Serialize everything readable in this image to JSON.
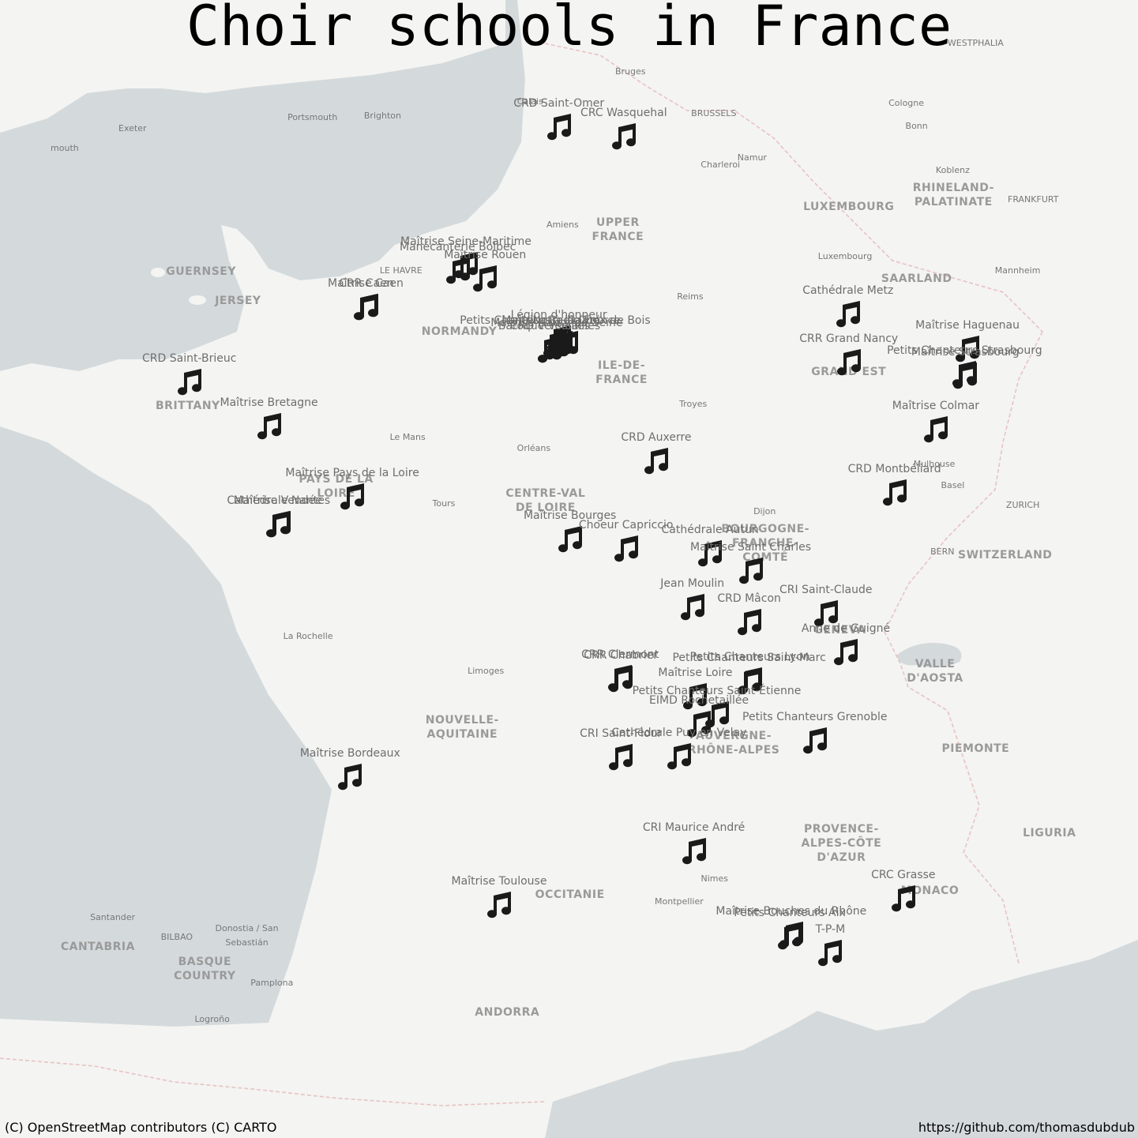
{
  "title": "Choir schools in France",
  "attribution": "(C) OpenStreetMap contributors (C) CARTO",
  "source_url": "https://github.com/thomasdubdub",
  "colors": {
    "sea": "#d4dadc",
    "land": "#f4f4f2",
    "marker": "#1a1a1a",
    "label": "#6e6e6e"
  },
  "marker_icon": "music-note-icon",
  "schools": [
    {
      "name": "CRD Saint-Omer",
      "lon": 2.25,
      "lat": 50.75
    },
    {
      "name": "CRC Wasquehal",
      "lon": 3.13,
      "lat": 50.67
    },
    {
      "name": "Maîtrise Seine-Maritime",
      "lon": 0.99,
      "lat": 49.55
    },
    {
      "name": "Manécanterie Bolbec",
      "lon": 0.88,
      "lat": 49.5
    },
    {
      "name": "Maîtrise Rouen",
      "lon": 1.25,
      "lat": 49.43
    },
    {
      "name": "Maîtrise Caen",
      "lon": -0.37,
      "lat": 49.18
    },
    {
      "name": "CRR Caen",
      "lon": -0.36,
      "lat": 49.18
    },
    {
      "name": "Légion d'honneur",
      "lon": 2.25,
      "lat": 48.9
    },
    {
      "name": "Maîtrise Radio France",
      "lon": 2.28,
      "lat": 48.85
    },
    {
      "name": "Notre-Dame",
      "lon": 2.35,
      "lat": 48.85
    },
    {
      "name": "CRD Versailles",
      "lon": 2.13,
      "lat": 48.8
    },
    {
      "name": "Baroque Versailles",
      "lon": 2.12,
      "lat": 48.8
    },
    {
      "name": "Maîtrise Hauts-de-Seine",
      "lon": 2.22,
      "lat": 48.83
    },
    {
      "name": "Petits Chanteurs à la Croix de Bois",
      "lon": 2.2,
      "lat": 48.85
    },
    {
      "name": "Cathédrale Metz",
      "lon": 6.17,
      "lat": 49.12
    },
    {
      "name": "CRR Grand Nancy",
      "lon": 6.18,
      "lat": 48.69
    },
    {
      "name": "Maîtrise Haguenau",
      "lon": 7.79,
      "lat": 48.81
    },
    {
      "name": "Petits Chanteurs Strasbourg",
      "lon": 7.75,
      "lat": 48.58
    },
    {
      "name": "Maîtrise Strasbourg",
      "lon": 7.76,
      "lat": 48.57
    },
    {
      "name": "CRD Saint-Brieuc",
      "lon": -2.76,
      "lat": 48.51
    },
    {
      "name": "Maîtrise Bretagne",
      "lon": -1.68,
      "lat": 48.11
    },
    {
      "name": "Maîtrise Colmar",
      "lon": 7.36,
      "lat": 48.08
    },
    {
      "name": "CRD Auxerre",
      "lon": 3.57,
      "lat": 47.8
    },
    {
      "name": "CRD Montbéliard",
      "lon": 6.8,
      "lat": 47.51
    },
    {
      "name": "Maîtrise Pays de la Loire",
      "lon": -0.55,
      "lat": 47.47
    },
    {
      "name": "Maîtrise Vendée",
      "lon": -1.56,
      "lat": 47.22
    },
    {
      "name": "Cathédrale Nantes",
      "lon": -1.55,
      "lat": 47.22
    },
    {
      "name": "Maîtrise Bourges",
      "lon": 2.4,
      "lat": 47.08
    },
    {
      "name": "Choeur Capriccio",
      "lon": 3.16,
      "lat": 46.99
    },
    {
      "name": "Cathédrale Autun",
      "lon": 4.3,
      "lat": 46.95
    },
    {
      "name": "Maîtrise Saint Charles",
      "lon": 4.85,
      "lat": 46.79
    },
    {
      "name": "Jean Moulin",
      "lon": 4.06,
      "lat": 46.45
    },
    {
      "name": "CRD Mâcon",
      "lon": 4.83,
      "lat": 46.31
    },
    {
      "name": "CRI Saint-Claude",
      "lon": 5.87,
      "lat": 46.39
    },
    {
      "name": "Anne de Guigné",
      "lon": 6.14,
      "lat": 46.03
    },
    {
      "name": "CRR Clermont",
      "lon": 3.08,
      "lat": 45.78
    },
    {
      "name": "CRR Chabrier",
      "lon": 3.09,
      "lat": 45.77
    },
    {
      "name": "Petits Chanteurs Lyon",
      "lon": 4.84,
      "lat": 45.76
    },
    {
      "name": "Petits Chanteurs Saint-Marc",
      "lon": 4.83,
      "lat": 45.75
    },
    {
      "name": "Maîtrise Loire",
      "lon": 4.1,
      "lat": 45.61
    },
    {
      "name": "Petits Chanteurs Saint-Étienne",
      "lon": 4.39,
      "lat": 45.44
    },
    {
      "name": "EIMD Rochetaillée",
      "lon": 4.15,
      "lat": 45.35
    },
    {
      "name": "Petits Chanteurs Grenoble",
      "lon": 5.72,
      "lat": 45.19
    },
    {
      "name": "CRI Saint-Flour",
      "lon": 3.09,
      "lat": 45.03
    },
    {
      "name": "Cathédrale Puy en Velay",
      "lon": 3.88,
      "lat": 45.04
    },
    {
      "name": "Maîtrise Bordeaux",
      "lon": -0.58,
      "lat": 44.84
    },
    {
      "name": "CRI Maurice André",
      "lon": 4.08,
      "lat": 44.12
    },
    {
      "name": "CRC Grasse",
      "lon": 6.92,
      "lat": 43.66
    },
    {
      "name": "Maîtrise Toulouse",
      "lon": 1.44,
      "lat": 43.6
    },
    {
      "name": "Maîtrise Bouches du Rhône",
      "lon": 5.4,
      "lat": 43.3
    },
    {
      "name": "Petits Chanteurs Aix",
      "lon": 5.38,
      "lat": 43.29
    },
    {
      "name": "T-P-M",
      "lon": 5.93,
      "lat": 43.12
    }
  ],
  "basemap_labels": {
    "regions": [
      {
        "text": "UPPER\nFRANCE",
        "lon": 3.05,
        "lat": 49.85
      },
      {
        "text": "NORMANDY",
        "lon": 0.9,
        "lat": 48.95
      },
      {
        "text": "ILE-DE-\nFRANCE",
        "lon": 3.1,
        "lat": 48.58
      },
      {
        "text": "GRAND EST",
        "lon": 6.18,
        "lat": 48.59
      },
      {
        "text": "BRITTANY",
        "lon": -2.78,
        "lat": 48.28
      },
      {
        "text": "PAYS DE LA\nLOIRE",
        "lon": -0.77,
        "lat": 47.55
      },
      {
        "text": "CENTRE-VAL\nDE LOIRE",
        "lon": 2.07,
        "lat": 47.42
      },
      {
        "text": "BOURGOGNE-\nFRANCHE-\nCOMTÉ",
        "lon": 5.05,
        "lat": 47.03
      },
      {
        "text": "NOUVELLE-\nAQUITAINE",
        "lon": 0.94,
        "lat": 45.3
      },
      {
        "text": "AUVERGNE-\nRHÔNE-ALPES",
        "lon": 4.62,
        "lat": 45.15
      },
      {
        "text": "PROVENCE-\nALPES-CÔTE\nD'AZUR",
        "lon": 6.08,
        "lat": 44.18
      },
      {
        "text": "OCCITANIE",
        "lon": 2.4,
        "lat": 43.68
      },
      {
        "text": "LUXEMBOURG",
        "lon": 6.18,
        "lat": 50.05
      },
      {
        "text": "RHINELAND-\nPALATINATE",
        "lon": 7.6,
        "lat": 50.15
      },
      {
        "text": "SAARLAND",
        "lon": 7.1,
        "lat": 49.42
      },
      {
        "text": "BASQUE\nCOUNTRY",
        "lon": -2.55,
        "lat": 42.95
      },
      {
        "text": "CANTABRIA",
        "lon": -4.0,
        "lat": 43.17
      },
      {
        "text": "VALLE\nD'AOSTA",
        "lon": 7.35,
        "lat": 45.83
      },
      {
        "text": "PIEMONTE",
        "lon": 7.9,
        "lat": 45.1
      },
      {
        "text": "SWITZERLAND",
        "lon": 8.3,
        "lat": 46.92
      },
      {
        "text": "GENEVA",
        "lon": 6.06,
        "lat": 46.22
      },
      {
        "text": "MONACO",
        "lon": 7.28,
        "lat": 43.72
      },
      {
        "text": "ANDORRA",
        "lon": 1.55,
        "lat": 42.52
      },
      {
        "text": "LIGURIA",
        "lon": 8.9,
        "lat": 44.28
      },
      {
        "text": "GUERNSEY",
        "lon": -2.6,
        "lat": 49.48
      },
      {
        "text": "JERSEY",
        "lon": -2.1,
        "lat": 49.22
      }
    ],
    "cities": [
      {
        "text": "Portsmouth",
        "lon": -1.09,
        "lat": 50.82
      },
      {
        "text": "Brighton",
        "lon": -0.14,
        "lat": 50.83
      },
      {
        "text": "Exeter",
        "lon": -3.53,
        "lat": 50.72
      },
      {
        "text": "Calais",
        "lon": 1.86,
        "lat": 50.95
      },
      {
        "text": "Bruges",
        "lon": 3.22,
        "lat": 51.21
      },
      {
        "text": "BRUSSELS",
        "lon": 4.35,
        "lat": 50.85
      },
      {
        "text": "Namur",
        "lon": 4.87,
        "lat": 50.47
      },
      {
        "text": "Charleroi",
        "lon": 4.44,
        "lat": 50.41
      },
      {
        "text": "Cologne",
        "lon": 6.96,
        "lat": 50.94
      },
      {
        "text": "Bonn",
        "lon": 7.1,
        "lat": 50.74
      },
      {
        "text": "Koblenz",
        "lon": 7.59,
        "lat": 50.36
      },
      {
        "text": "FRANKFURT",
        "lon": 8.68,
        "lat": 50.11
      },
      {
        "text": "Amiens",
        "lon": 2.3,
        "lat": 49.89
      },
      {
        "text": "LE HAVRE",
        "lon": 0.11,
        "lat": 49.49
      },
      {
        "text": "Reims",
        "lon": 4.03,
        "lat": 49.26
      },
      {
        "text": "Luxembourg",
        "lon": 6.13,
        "lat": 49.61
      },
      {
        "text": "Mannheim",
        "lon": 8.47,
        "lat": 49.49
      },
      {
        "text": "Troyes",
        "lon": 4.07,
        "lat": 48.3
      },
      {
        "text": "Le Mans",
        "lon": 0.2,
        "lat": 48.0
      },
      {
        "text": "Orléans",
        "lon": 1.91,
        "lat": 47.9
      },
      {
        "text": "Tours",
        "lon": 0.69,
        "lat": 47.39
      },
      {
        "text": "Dijon",
        "lon": 5.04,
        "lat": 47.32
      },
      {
        "text": "Mulhouse",
        "lon": 7.34,
        "lat": 47.75
      },
      {
        "text": "Basel",
        "lon": 7.59,
        "lat": 47.56
      },
      {
        "text": "ZURICH",
        "lon": 8.54,
        "lat": 47.38
      },
      {
        "text": "BERN",
        "lon": 7.45,
        "lat": 46.95
      },
      {
        "text": "La Rochelle",
        "lon": -1.15,
        "lat": 46.16
      },
      {
        "text": "Limoges",
        "lon": 1.26,
        "lat": 45.83
      },
      {
        "text": "Nimes",
        "lon": 4.36,
        "lat": 43.84
      },
      {
        "text": "Montpellier",
        "lon": 3.88,
        "lat": 43.61
      },
      {
        "text": "Santander",
        "lon": -3.8,
        "lat": 43.46
      },
      {
        "text": "BILBAO",
        "lon": -2.93,
        "lat": 43.26
      },
      {
        "text": "Donostia / San\nSebastián",
        "lon": -1.98,
        "lat": 43.28
      },
      {
        "text": "Pamplona",
        "lon": -1.64,
        "lat": 42.81
      },
      {
        "text": "Logroño",
        "lon": -2.45,
        "lat": 42.45
      },
      {
        "text": "WESTPHALIA",
        "lon": 7.9,
        "lat": 51.45
      },
      {
        "text": "mouth",
        "lon": -4.45,
        "lat": 50.55
      }
    ]
  }
}
